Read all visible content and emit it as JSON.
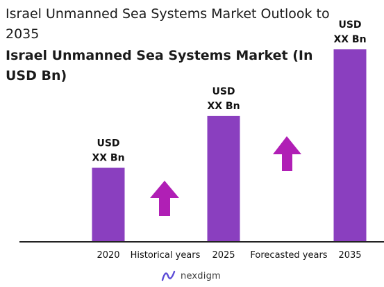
{
  "title": "Israel Unmanned Sea Systems Market Outlook to 2035",
  "subtitle": "Israel Unmanned Sea Systems Market (In USD Bn)",
  "brand": {
    "name": "nexdigm",
    "color": "#5b4bd6"
  },
  "colors": {
    "bar": "#8a3fbf",
    "arrow": "#b01fb5",
    "axis": "#222222"
  },
  "chart_data": {
    "type": "bar",
    "categories": [
      "2020",
      "2025",
      "2035"
    ],
    "values": [
      1.0,
      1.7,
      2.6
    ],
    "data_labels": [
      {
        "line1": "USD",
        "line2": "XX Bn"
      },
      {
        "line1": "USD",
        "line2": "XX Bn"
      },
      {
        "line1": "USD",
        "line2": "XX Bn"
      }
    ],
    "annotations": [
      "Historical years",
      "Forecasted years"
    ],
    "ylim": [
      0,
      2.6
    ],
    "grid": false,
    "legend": "none"
  }
}
